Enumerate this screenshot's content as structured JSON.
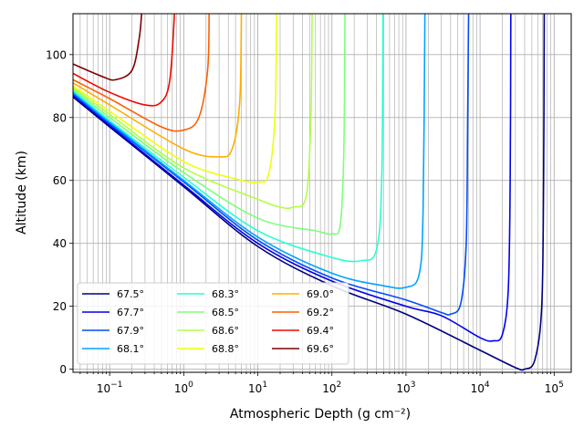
{
  "chart_data": {
    "type": "line",
    "title": "",
    "xlabel": "Atmospheric Depth (g cm⁻²)",
    "ylabel": "Altitude (km)",
    "xscale": "log",
    "xlim": [
      0.032,
      170000
    ],
    "ylim": [
      -1,
      113
    ],
    "x_ticks": [
      {
        "value": 0.1,
        "base": "10",
        "exp": "−1"
      },
      {
        "value": 1,
        "base": "10",
        "exp": "0"
      },
      {
        "value": 10,
        "base": "10",
        "exp": "1"
      },
      {
        "value": 100,
        "base": "10",
        "exp": "2"
      },
      {
        "value": 1000,
        "base": "10",
        "exp": "3"
      },
      {
        "value": 10000,
        "base": "10",
        "exp": "4"
      },
      {
        "value": 100000,
        "base": "10",
        "exp": "5"
      }
    ],
    "y_ticks": [
      {
        "value": 0,
        "label": "0"
      },
      {
        "value": 20,
        "label": "20"
      },
      {
        "value": 40,
        "label": "40"
      },
      {
        "value": 60,
        "label": "60"
      },
      {
        "value": 80,
        "label": "80"
      },
      {
        "value": 100,
        "label": "100"
      }
    ],
    "grid": true,
    "legend_position": "lower-left",
    "legend_columns": 3,
    "series": [
      {
        "name": "67.5°",
        "color": "#00007f",
        "points": [
          [
            0.032,
            86.5
          ],
          [
            0.1,
            77
          ],
          [
            1,
            58
          ],
          [
            10,
            39
          ],
          [
            100,
            26.5
          ],
          [
            1000,
            17.5
          ],
          [
            10000,
            6
          ],
          [
            30000,
            0.5
          ],
          [
            40000,
            0
          ],
          [
            55000,
            3
          ],
          [
            68000,
            20
          ],
          [
            72000,
            60
          ],
          [
            73500,
            113
          ]
        ]
      },
      {
        "name": "67.7°",
        "color": "#0000f0",
        "points": [
          [
            0.032,
            87
          ],
          [
            0.1,
            77.5
          ],
          [
            1,
            58.5
          ],
          [
            10,
            40
          ],
          [
            100,
            28
          ],
          [
            1000,
            20
          ],
          [
            3000,
            17
          ],
          [
            10000,
            10
          ],
          [
            15000,
            9
          ],
          [
            20000,
            11
          ],
          [
            24000,
            25
          ],
          [
            25500,
            60
          ],
          [
            26000,
            113
          ]
        ]
      },
      {
        "name": "67.9°",
        "color": "#004cff",
        "points": [
          [
            0.032,
            87.5
          ],
          [
            0.1,
            78
          ],
          [
            1,
            59.5
          ],
          [
            10,
            41
          ],
          [
            100,
            29
          ],
          [
            1000,
            22
          ],
          [
            3000,
            18
          ],
          [
            4000,
            17.5
          ],
          [
            5500,
            21
          ],
          [
            6500,
            40
          ],
          [
            6800,
            80
          ],
          [
            7000,
            113
          ]
        ]
      },
      {
        "name": "68.1°",
        "color": "#00a4ff",
        "points": [
          [
            0.032,
            88
          ],
          [
            0.1,
            78.5
          ],
          [
            1,
            60
          ],
          [
            10,
            42
          ],
          [
            100,
            30.5
          ],
          [
            500,
            26.5
          ],
          [
            1000,
            26
          ],
          [
            1500,
            30
          ],
          [
            1700,
            50
          ],
          [
            1800,
            113
          ]
        ]
      },
      {
        "name": "68.3°",
        "color": "#29ffce",
        "points": [
          [
            0.032,
            88.5
          ],
          [
            0.1,
            79
          ],
          [
            1,
            61
          ],
          [
            10,
            44
          ],
          [
            100,
            35.5
          ],
          [
            250,
            34.5
          ],
          [
            400,
            38
          ],
          [
            470,
            60
          ],
          [
            490,
            113
          ]
        ]
      },
      {
        "name": "68.5°",
        "color": "#7dff7a",
        "points": [
          [
            0.032,
            89
          ],
          [
            0.1,
            80
          ],
          [
            1,
            62.5
          ],
          [
            10,
            48
          ],
          [
            60,
            44
          ],
          [
            100,
            43
          ],
          [
            130,
            46
          ],
          [
            145,
            70
          ],
          [
            150,
            113
          ]
        ]
      },
      {
        "name": "68.6°",
        "color": "#b1ff46",
        "points": [
          [
            0.032,
            89.5
          ],
          [
            0.1,
            81
          ],
          [
            1,
            64
          ],
          [
            10,
            54
          ],
          [
            20,
            51.5
          ],
          [
            30,
            51.5
          ],
          [
            45,
            55
          ],
          [
            52,
            80
          ],
          [
            54,
            113
          ]
        ]
      },
      {
        "name": "68.8°",
        "color": "#ecff0c",
        "points": [
          [
            0.032,
            90
          ],
          [
            0.1,
            82
          ],
          [
            1,
            66
          ],
          [
            5,
            60.5
          ],
          [
            10,
            59.5
          ],
          [
            14,
            62
          ],
          [
            17,
            80
          ],
          [
            18,
            113
          ]
        ]
      },
      {
        "name": "69.0°",
        "color": "#ffad00",
        "points": [
          [
            0.032,
            91
          ],
          [
            0.1,
            84
          ],
          [
            1,
            70
          ],
          [
            3,
            67.5
          ],
          [
            4.5,
            70
          ],
          [
            5.7,
            85
          ],
          [
            6,
            113
          ]
        ]
      },
      {
        "name": "69.2°",
        "color": "#ff5f00",
        "points": [
          [
            0.032,
            92
          ],
          [
            0.1,
            86
          ],
          [
            0.5,
            77
          ],
          [
            1,
            76
          ],
          [
            1.6,
            80
          ],
          [
            2.1,
            95
          ],
          [
            2.2,
            113
          ]
        ]
      },
      {
        "name": "69.4°",
        "color": "#f10800",
        "points": [
          [
            0.032,
            94
          ],
          [
            0.1,
            88
          ],
          [
            0.3,
            84
          ],
          [
            0.5,
            85
          ],
          [
            0.65,
            92
          ],
          [
            0.75,
            113
          ]
        ]
      },
      {
        "name": "69.6°",
        "color": "#7f0000",
        "points": [
          [
            0.032,
            97
          ],
          [
            0.08,
            93
          ],
          [
            0.12,
            92
          ],
          [
            0.2,
            95
          ],
          [
            0.25,
            105
          ],
          [
            0.27,
            113
          ]
        ]
      }
    ]
  }
}
